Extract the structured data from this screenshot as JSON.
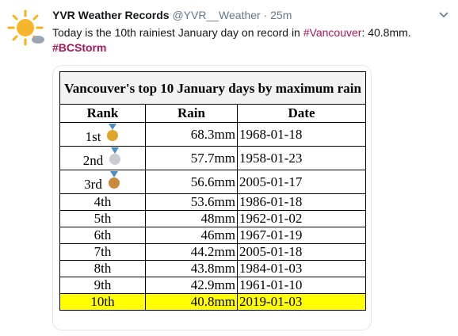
{
  "tweet": {
    "name": "YVR Weather Records",
    "handle": "@YVR__Weather",
    "time": "· 25m",
    "text": [
      "Today is the 10th rainiest January day on record in ",
      "#Vancouver",
      ": 40.8mm."
    ],
    "hashtag": "#BCStorm"
  },
  "table": {
    "title": "Vancouver's top 10 January days by maximum rain",
    "headers": [
      "Rank",
      "Rain",
      "Date"
    ],
    "rows": [
      [
        "1st",
        "68.3mm",
        "1968-01-18"
      ],
      [
        "2nd",
        "57.7mm",
        "1958-01-23"
      ],
      [
        "3rd",
        "56.6mm",
        "2005-01-17"
      ],
      [
        "4th",
        "53.6mm",
        "1986-01-18"
      ],
      [
        "5th",
        "48mm",
        "1962-01-02"
      ],
      [
        "6th",
        "46mm",
        "1967-01-19"
      ],
      [
        "7th",
        "44.2mm",
        "2005-01-18"
      ],
      [
        "8th",
        "43.8mm",
        "1984-01-03"
      ],
      [
        "9th",
        "42.9mm",
        "1961-01-10"
      ],
      [
        "10th",
        "40.8mm",
        "2019-01-03"
      ]
    ]
  }
}
